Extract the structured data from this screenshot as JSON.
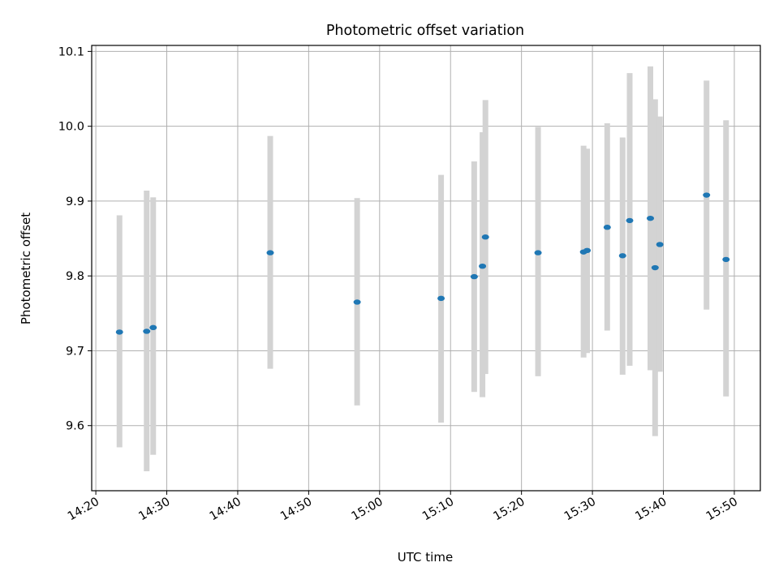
{
  "chart_data": {
    "type": "scatter",
    "title": "Photometric offset variation",
    "xlabel": "UTC time",
    "ylabel": "Photometric offset",
    "x_tick_labels": [
      "14:20",
      "14:30",
      "14:40",
      "14:50",
      "15:00",
      "15:10",
      "15:20",
      "15:30",
      "15:40",
      "15:50"
    ],
    "y_tick_labels": [
      "9.6",
      "9.7",
      "9.8",
      "9.9",
      "10.0",
      "10.1"
    ],
    "xlim": [
      "14:19:25",
      "15:53:40"
    ],
    "ylim": [
      9.513,
      10.108
    ],
    "grid": true,
    "series": [
      {
        "points": [
          {
            "x": "14:23:20",
            "y": 9.725,
            "ylow": 9.571,
            "yhigh": 9.881
          },
          {
            "x": "14:27:10",
            "y": 9.726,
            "ylow": 9.539,
            "yhigh": 9.914
          },
          {
            "x": "14:28:05",
            "y": 9.731,
            "ylow": 9.561,
            "yhigh": 9.905
          },
          {
            "x": "14:44:35",
            "y": 9.831,
            "ylow": 9.676,
            "yhigh": 9.987
          },
          {
            "x": "14:56:50",
            "y": 9.765,
            "ylow": 9.627,
            "yhigh": 9.904
          },
          {
            "x": "15:08:40",
            "y": 9.77,
            "ylow": 9.604,
            "yhigh": 9.935
          },
          {
            "x": "15:13:20",
            "y": 9.799,
            "ylow": 9.645,
            "yhigh": 9.953
          },
          {
            "x": "15:14:30",
            "y": 9.813,
            "ylow": 9.638,
            "yhigh": 9.992
          },
          {
            "x": "15:14:55",
            "y": 9.852,
            "ylow": 9.669,
            "yhigh": 10.035
          },
          {
            "x": "15:22:20",
            "y": 9.831,
            "ylow": 9.666,
            "yhigh": 9.999
          },
          {
            "x": "15:28:45",
            "y": 9.832,
            "ylow": 9.691,
            "yhigh": 9.974
          },
          {
            "x": "15:29:15",
            "y": 9.834,
            "ylow": 9.697,
            "yhigh": 9.97
          },
          {
            "x": "15:32:05",
            "y": 9.865,
            "ylow": 9.727,
            "yhigh": 10.004
          },
          {
            "x": "15:34:15",
            "y": 9.827,
            "ylow": 9.668,
            "yhigh": 9.985
          },
          {
            "x": "15:35:15",
            "y": 9.874,
            "ylow": 9.68,
            "yhigh": 10.071
          },
          {
            "x": "15:38:10",
            "y": 9.877,
            "ylow": 9.674,
            "yhigh": 10.08
          },
          {
            "x": "15:38:50",
            "y": 9.811,
            "ylow": 9.586,
            "yhigh": 10.036
          },
          {
            "x": "15:39:30",
            "y": 9.842,
            "ylow": 9.672,
            "yhigh": 10.013
          },
          {
            "x": "15:46:05",
            "y": 9.908,
            "ylow": 9.755,
            "yhigh": 10.061
          },
          {
            "x": "15:48:50",
            "y": 9.822,
            "ylow": 9.639,
            "yhigh": 10.008
          }
        ]
      }
    ]
  },
  "colors": {
    "marker": "#1f77b4",
    "errorbar": "#d3d3d3",
    "grid": "#b0b0b0",
    "axes": "#000000"
  }
}
